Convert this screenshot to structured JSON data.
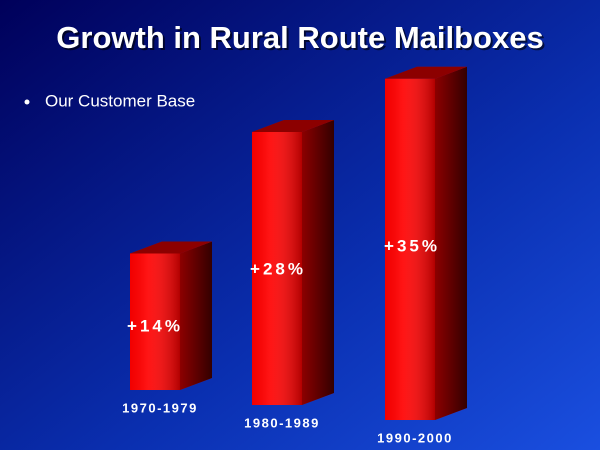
{
  "chart_data": {
    "type": "bar3d",
    "title": "Growth in Rural Route Mailboxes",
    "subtitle": "Our Customer Base",
    "categories": [
      "1970-1979",
      "1980-1989",
      "1990-2000"
    ],
    "values": [
      14,
      28,
      35
    ],
    "value_labels": [
      "+14%",
      "+28%",
      "+35%"
    ],
    "color": "#ff0000"
  }
}
